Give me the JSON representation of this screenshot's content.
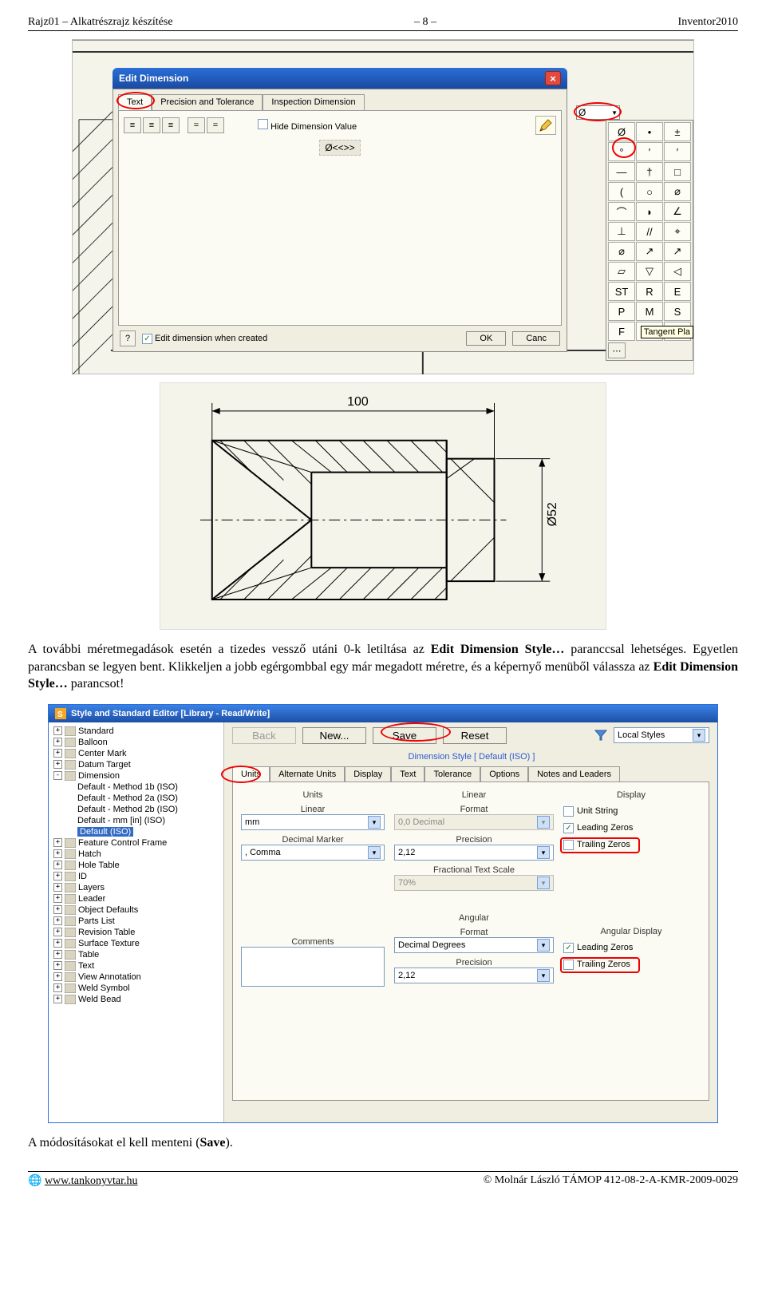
{
  "header": {
    "left": "Rajz01 – Alkatrészrajz készítése",
    "center": "– 8 –",
    "right": "Inventor2010"
  },
  "footer": {
    "left": "www.tankonyvtar.hu",
    "right": "© Molnár László TÁMOP 412-08-2-A-KMR-2009-0029",
    "link_icon": "🌐"
  },
  "edit_dim": {
    "title": "Edit Dimension",
    "tabs": [
      "Text",
      "Precision and Tolerance",
      "Inspection Dimension"
    ],
    "active_tab": 0,
    "hide_label": "Hide Dimension Value",
    "field_text": "Ø<<>>",
    "edit_when_created": "Edit dimension when created",
    "ok": "OK",
    "cancel": "Canc",
    "symbol_selected": "Ø",
    "tooltip": "Tangent Pla",
    "symbols": [
      "Ø",
      "•",
      "±",
      "°",
      "′",
      "′",
      "—",
      "†",
      "□",
      "(",
      "○",
      "⌀",
      "⌒",
      "◗",
      "∠",
      "⊥",
      "//",
      "⌖",
      "⌀",
      "↗",
      "↗",
      "▱",
      "▽",
      "◁",
      "ST",
      "R",
      "E",
      "P",
      "M",
      "S",
      "F",
      "T",
      " "
    ]
  },
  "tech": {
    "dim_top": "100",
    "dim_right": "Ø52"
  },
  "para1_pre": "A további méretmegadások esetén a tizedes vessző utáni 0-k letiltása az ",
  "para1_bold": "Edit Dimension Style…",
  "para1_post": " paranccsal lehetséges. Egyetlen parancsban se legyen bent. Klikkeljen a jobb egérgombbal egy már megadott méretre, és a képernyő menüből válassza az ",
  "para1_bold2": "Edit Dimension Style…",
  "para1_end": " parancsot!",
  "para2_pre": "A módosításokat el kell menteni (",
  "para2_bold": "Save",
  "para2_post": ").",
  "style_editor": {
    "title": "Style and Standard Editor [Library - Read/Write]",
    "buttons": {
      "back": "Back",
      "new": "New...",
      "save": "Save",
      "reset": "Reset"
    },
    "filter_label": "Local Styles",
    "crumb": "Dimension Style [ Default (ISO) ]",
    "tabs": [
      "Units",
      "Alternate Units",
      "Display",
      "Text",
      "Tolerance",
      "Options",
      "Notes and Leaders"
    ],
    "tree": [
      {
        "exp": "+",
        "label": "Standard"
      },
      {
        "exp": "+",
        "label": "Balloon",
        "icon": "balloon"
      },
      {
        "exp": "",
        "label": "Center Mark",
        "icon": "center",
        "leaf": true,
        "plus": "+"
      },
      {
        "exp": "+",
        "label": "Datum Target",
        "icon": "datum"
      },
      {
        "exp": "-",
        "label": "Dimension",
        "icon": "dim"
      },
      {
        "child": true,
        "label": "Default - Method 1b (ISO)"
      },
      {
        "child": true,
        "label": "Default - Method 2a (ISO)"
      },
      {
        "child": true,
        "label": "Default - Method 2b (ISO)"
      },
      {
        "child": true,
        "label": "Default - mm [in] (ISO)"
      },
      {
        "child": true,
        "label": "Default (ISO)",
        "selected": true
      },
      {
        "exp": "+",
        "label": "Feature Control Frame",
        "icon": "fcf"
      },
      {
        "exp": "+",
        "label": "Hatch",
        "icon": "hatch"
      },
      {
        "exp": "+",
        "label": "Hole Table",
        "icon": "hole"
      },
      {
        "exp": "+",
        "label": "ID",
        "icon": "id"
      },
      {
        "exp": "+",
        "label": "Layers",
        "icon": "layers"
      },
      {
        "exp": "+",
        "label": "Leader",
        "icon": "leader"
      },
      {
        "exp": "+",
        "label": "Object Defaults",
        "icon": "obj"
      },
      {
        "exp": "+",
        "label": "Parts List",
        "icon": "parts"
      },
      {
        "exp": "+",
        "label": "Revision Table",
        "icon": "rev"
      },
      {
        "exp": "+",
        "label": "Surface Texture",
        "icon": "surf"
      },
      {
        "exp": "+",
        "label": "Table",
        "icon": "table"
      },
      {
        "exp": "+",
        "label": "Text",
        "icon": "text"
      },
      {
        "exp": "+",
        "label": "View Annotation",
        "icon": "view"
      },
      {
        "exp": "+",
        "label": "Weld Symbol",
        "icon": "weld"
      },
      {
        "exp": "+",
        "label": "Weld Bead",
        "icon": "bead"
      }
    ],
    "units_group": "Units",
    "linear_label": "Linear",
    "linear_value": "mm",
    "decimal_marker_label": "Decimal Marker",
    "decimal_marker_value": ", Comma",
    "comments_label": "Comments",
    "linear_group": "Linear",
    "format_label": "Format",
    "format_value": "0,0 Decimal",
    "precision_label": "Precision",
    "precision_value": "2,12",
    "frac_label": "Fractional Text Scale",
    "frac_value": "70%",
    "angular_group": "Angular",
    "ang_format_value": "Decimal Degrees",
    "ang_precision_value": "2,12",
    "display_group": "Display",
    "unit_string": "Unit String",
    "leading_zeros": "Leading Zeros",
    "trailing_zeros": "Trailing Zeros",
    "angular_display_group": "Angular Display"
  }
}
